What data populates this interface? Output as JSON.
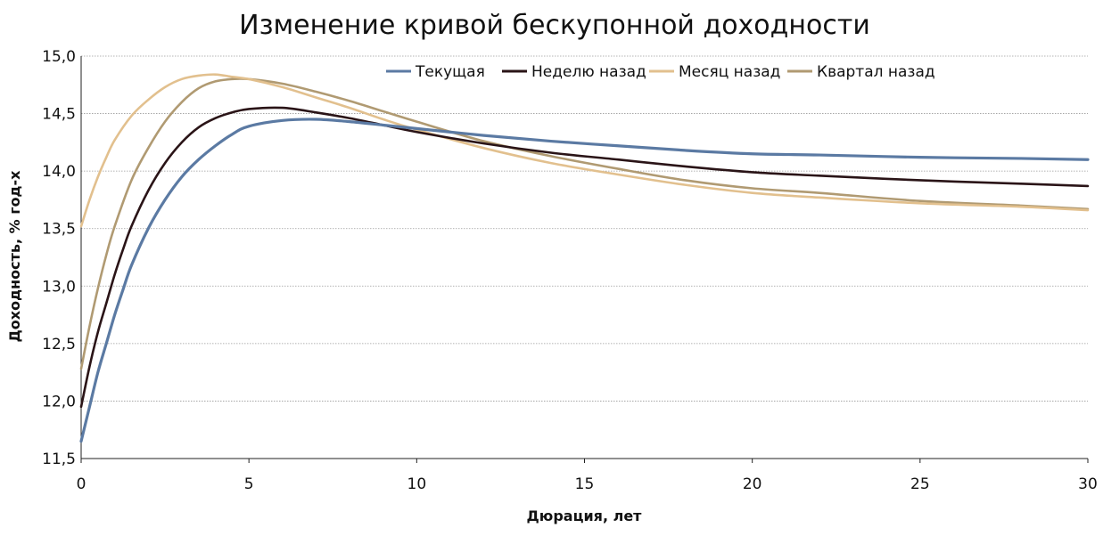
{
  "chart_data": {
    "type": "line",
    "title": "Изменение кривой бескупонной доходности",
    "xlabel": "Дюрация, лет",
    "ylabel": "Доходность, % год-х",
    "xlim": [
      0,
      30
    ],
    "ylim": [
      11.5,
      15.0
    ],
    "x_ticks": [
      "0",
      "5",
      "10",
      "15",
      "20",
      "25",
      "30"
    ],
    "x_tick_values": [
      0,
      5,
      10,
      15,
      20,
      25,
      30
    ],
    "y_ticks": [
      "11,5",
      "12,0",
      "12,5",
      "13,0",
      "13,5",
      "14,0",
      "14,5",
      "15,0"
    ],
    "y_tick_values": [
      11.5,
      12.0,
      12.5,
      13.0,
      13.5,
      14.0,
      14.5,
      15.0
    ],
    "grid": true,
    "legend_position": "top",
    "series": [
      {
        "name": "Текущая",
        "color": "#5b7aa3",
        "points": [
          [
            0,
            11.65
          ],
          [
            0.25,
            11.95
          ],
          [
            0.5,
            12.25
          ],
          [
            0.75,
            12.5
          ],
          [
            1,
            12.75
          ],
          [
            1.25,
            12.97
          ],
          [
            1.5,
            13.18
          ],
          [
            2,
            13.5
          ],
          [
            2.5,
            13.75
          ],
          [
            3,
            13.95
          ],
          [
            3.5,
            14.1
          ],
          [
            4,
            14.22
          ],
          [
            4.5,
            14.32
          ],
          [
            5,
            14.39
          ],
          [
            6,
            14.44
          ],
          [
            7,
            14.45
          ],
          [
            8,
            14.43
          ],
          [
            9,
            14.4
          ],
          [
            10,
            14.37
          ],
          [
            12,
            14.31
          ],
          [
            14,
            14.26
          ],
          [
            16,
            14.22
          ],
          [
            18,
            14.18
          ],
          [
            20,
            14.15
          ],
          [
            22,
            14.14
          ],
          [
            25,
            14.12
          ],
          [
            28,
            14.11
          ],
          [
            30,
            14.1
          ]
        ]
      },
      {
        "name": "Неделю назад",
        "color": "#2a1417",
        "points": [
          [
            0,
            11.95
          ],
          [
            0.25,
            12.3
          ],
          [
            0.5,
            12.6
          ],
          [
            0.75,
            12.85
          ],
          [
            1,
            13.1
          ],
          [
            1.25,
            13.32
          ],
          [
            1.5,
            13.52
          ],
          [
            2,
            13.83
          ],
          [
            2.5,
            14.07
          ],
          [
            3,
            14.25
          ],
          [
            3.5,
            14.38
          ],
          [
            4,
            14.46
          ],
          [
            4.5,
            14.51
          ],
          [
            5,
            14.54
          ],
          [
            6,
            14.55
          ],
          [
            7,
            14.51
          ],
          [
            8,
            14.46
          ],
          [
            9,
            14.4
          ],
          [
            10,
            14.34
          ],
          [
            12,
            14.24
          ],
          [
            14,
            14.16
          ],
          [
            16,
            14.1
          ],
          [
            18,
            14.04
          ],
          [
            20,
            13.99
          ],
          [
            22,
            13.96
          ],
          [
            25,
            13.92
          ],
          [
            28,
            13.89
          ],
          [
            30,
            13.87
          ]
        ]
      },
      {
        "name": "Месяц назад",
        "color": "#e2c08e",
        "points": [
          [
            0,
            13.52
          ],
          [
            0.25,
            13.75
          ],
          [
            0.5,
            13.95
          ],
          [
            0.75,
            14.12
          ],
          [
            1,
            14.27
          ],
          [
            1.5,
            14.48
          ],
          [
            2,
            14.62
          ],
          [
            2.5,
            14.73
          ],
          [
            3,
            14.8
          ],
          [
            3.5,
            14.83
          ],
          [
            4,
            14.84
          ],
          [
            4.5,
            14.82
          ],
          [
            5,
            14.8
          ],
          [
            6,
            14.73
          ],
          [
            7,
            14.64
          ],
          [
            8,
            14.55
          ],
          [
            9,
            14.45
          ],
          [
            10,
            14.36
          ],
          [
            12,
            14.2
          ],
          [
            14,
            14.07
          ],
          [
            16,
            13.97
          ],
          [
            18,
            13.88
          ],
          [
            20,
            13.81
          ],
          [
            22,
            13.77
          ],
          [
            25,
            13.72
          ],
          [
            28,
            13.69
          ],
          [
            30,
            13.66
          ]
        ]
      },
      {
        "name": "Квартал назад",
        "color": "#b09a72",
        "points": [
          [
            0,
            12.28
          ],
          [
            0.25,
            12.65
          ],
          [
            0.5,
            12.98
          ],
          [
            0.75,
            13.27
          ],
          [
            1,
            13.52
          ],
          [
            1.5,
            13.92
          ],
          [
            2,
            14.2
          ],
          [
            2.5,
            14.43
          ],
          [
            3,
            14.6
          ],
          [
            3.5,
            14.72
          ],
          [
            4,
            14.78
          ],
          [
            4.5,
            14.8
          ],
          [
            5,
            14.8
          ],
          [
            6,
            14.76
          ],
          [
            7,
            14.69
          ],
          [
            8,
            14.61
          ],
          [
            9,
            14.52
          ],
          [
            10,
            14.43
          ],
          [
            12,
            14.26
          ],
          [
            14,
            14.13
          ],
          [
            16,
            14.02
          ],
          [
            18,
            13.92
          ],
          [
            20,
            13.85
          ],
          [
            22,
            13.81
          ],
          [
            25,
            13.74
          ],
          [
            28,
            13.7
          ],
          [
            30,
            13.67
          ]
        ]
      }
    ]
  }
}
